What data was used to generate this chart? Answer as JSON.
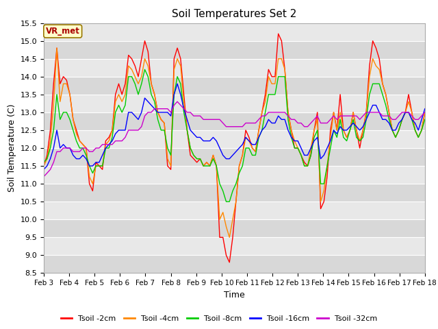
{
  "title": "Soil Temperatures Set 2",
  "xlabel": "Time",
  "ylabel": "Soil Temperature (C)",
  "ylim": [
    8.5,
    15.5
  ],
  "xtick_labels": [
    "Feb 3",
    "Feb 4",
    "Feb 5",
    "Feb 6",
    "Feb 7",
    "Feb 8",
    "Feb 9",
    "Feb 10",
    "Feb 11",
    "Feb 12",
    "Feb 13",
    "Feb 14",
    "Feb 15",
    "Feb 16",
    "Feb 17",
    "Feb 18"
  ],
  "ytick_values": [
    8.5,
    9.0,
    9.5,
    10.0,
    10.5,
    11.0,
    11.5,
    12.0,
    12.5,
    13.0,
    13.5,
    14.0,
    14.5,
    15.0,
    15.5
  ],
  "legend_label": "VR_met",
  "series_colors": [
    "#ff0000",
    "#ff8800",
    "#00cc00",
    "#0000ff",
    "#cc00cc"
  ],
  "series_labels": [
    "Tsoil -2cm",
    "Tsoil -4cm",
    "Tsoil -8cm",
    "Tsoil -16cm",
    "Tsoil -32cm"
  ],
  "fig_background": "#ffffff",
  "plot_background_light": "#e8e8e8",
  "plot_background_dark": "#d8d8d8",
  "grid_color": "#ffffff",
  "annotation_box_color": "#ffffcc",
  "annotation_text_color": "#aa0000",
  "Tsoil_2cm": [
    11.5,
    11.8,
    12.5,
    13.8,
    14.8,
    13.8,
    14.0,
    13.9,
    13.5,
    12.8,
    12.5,
    12.2,
    12.1,
    12.0,
    11.0,
    10.8,
    11.6,
    11.5,
    11.4,
    12.2,
    12.3,
    12.5,
    13.5,
    13.8,
    13.5,
    13.8,
    14.6,
    14.5,
    14.3,
    14.0,
    14.5,
    15.0,
    14.7,
    13.8,
    13.5,
    13.0,
    12.8,
    12.7,
    11.5,
    11.4,
    14.5,
    14.8,
    14.5,
    13.5,
    12.5,
    11.8,
    11.7,
    11.6,
    11.7,
    11.5,
    11.6,
    11.5,
    11.8,
    11.5,
    9.5,
    9.5,
    9.0,
    8.8,
    9.5,
    10.5,
    11.5,
    11.8,
    12.5,
    12.3,
    12.0,
    11.9,
    12.5,
    13.0,
    13.5,
    14.2,
    14.0,
    14.0,
    15.2,
    15.0,
    14.2,
    13.0,
    12.5,
    12.0,
    12.0,
    11.8,
    11.6,
    11.5,
    11.8,
    12.5,
    13.0,
    10.3,
    10.5,
    11.2,
    12.5,
    13.0,
    12.5,
    13.5,
    12.5,
    12.3,
    12.5,
    13.0,
    12.5,
    12.0,
    12.5,
    13.0,
    14.3,
    15.0,
    14.8,
    14.5,
    13.8,
    13.5,
    13.0,
    12.5,
    12.3,
    12.5,
    12.8,
    13.0,
    13.5,
    13.0,
    12.5,
    12.3,
    12.5,
    13.0
  ],
  "Tsoil_4cm": [
    11.5,
    11.7,
    12.2,
    13.2,
    14.8,
    13.3,
    13.8,
    13.8,
    13.5,
    12.8,
    12.4,
    12.2,
    12.1,
    12.0,
    11.2,
    11.0,
    11.5,
    11.5,
    11.5,
    12.1,
    12.2,
    12.5,
    13.3,
    13.5,
    13.3,
    13.5,
    14.3,
    14.2,
    14.0,
    13.8,
    14.0,
    14.5,
    14.3,
    13.8,
    13.5,
    13.0,
    12.8,
    12.7,
    11.7,
    11.5,
    14.2,
    14.5,
    14.3,
    13.3,
    12.5,
    12.0,
    11.8,
    11.7,
    11.7,
    11.5,
    11.6,
    11.5,
    11.8,
    11.5,
    10.0,
    10.2,
    9.8,
    9.5,
    10.0,
    10.5,
    11.5,
    11.8,
    12.3,
    12.2,
    12.0,
    11.9,
    12.5,
    13.0,
    13.3,
    14.0,
    13.8,
    13.8,
    14.5,
    14.5,
    14.2,
    13.0,
    12.5,
    12.2,
    12.0,
    11.8,
    11.5,
    11.5,
    12.0,
    12.5,
    12.8,
    10.5,
    10.8,
    11.5,
    12.3,
    13.0,
    12.5,
    13.0,
    12.5,
    12.3,
    12.5,
    13.0,
    12.5,
    12.2,
    12.5,
    13.0,
    14.0,
    14.5,
    14.3,
    14.2,
    13.8,
    13.5,
    13.0,
    12.5,
    12.3,
    12.5,
    12.8,
    13.0,
    13.3,
    13.0,
    12.5,
    12.3,
    12.5,
    13.0
  ],
  "Tsoil_8cm": [
    11.6,
    11.7,
    12.0,
    12.5,
    13.5,
    12.8,
    13.0,
    13.0,
    12.8,
    12.5,
    12.2,
    12.0,
    12.0,
    11.8,
    11.5,
    11.3,
    11.5,
    11.5,
    11.5,
    12.0,
    12.0,
    12.3,
    13.0,
    13.2,
    13.0,
    13.2,
    14.0,
    14.0,
    13.8,
    13.5,
    13.8,
    14.2,
    14.0,
    13.5,
    13.3,
    12.8,
    12.5,
    12.5,
    12.0,
    11.8,
    13.5,
    14.0,
    13.8,
    13.0,
    12.5,
    12.0,
    11.8,
    11.7,
    11.7,
    11.5,
    11.5,
    11.5,
    11.7,
    11.5,
    11.0,
    10.8,
    10.5,
    10.5,
    10.8,
    11.0,
    11.3,
    11.5,
    12.0,
    12.0,
    11.8,
    11.8,
    12.3,
    12.5,
    13.0,
    13.5,
    13.5,
    13.5,
    14.0,
    14.0,
    14.0,
    12.8,
    12.3,
    12.0,
    12.0,
    11.8,
    11.5,
    11.5,
    11.8,
    12.3,
    12.5,
    11.0,
    11.0,
    11.5,
    12.0,
    12.5,
    12.3,
    12.8,
    12.3,
    12.2,
    12.5,
    12.8,
    12.3,
    12.2,
    12.3,
    12.8,
    13.5,
    13.8,
    13.8,
    13.8,
    13.5,
    13.2,
    12.8,
    12.5,
    12.3,
    12.5,
    12.8,
    13.0,
    13.0,
    12.8,
    12.5,
    12.3,
    12.5,
    12.8
  ],
  "Tsoil_16cm": [
    11.4,
    11.5,
    11.7,
    12.0,
    12.5,
    12.0,
    12.1,
    12.0,
    12.0,
    11.8,
    11.7,
    11.7,
    11.8,
    11.7,
    11.5,
    11.5,
    11.6,
    11.6,
    11.8,
    12.0,
    12.1,
    12.2,
    12.4,
    12.5,
    12.5,
    12.5,
    13.0,
    13.0,
    12.9,
    12.8,
    13.0,
    13.4,
    13.3,
    13.2,
    13.1,
    13.0,
    13.0,
    13.0,
    13.0,
    12.9,
    13.5,
    13.8,
    13.5,
    13.1,
    12.8,
    12.5,
    12.4,
    12.3,
    12.3,
    12.2,
    12.2,
    12.2,
    12.3,
    12.2,
    12.0,
    11.8,
    11.7,
    11.7,
    11.8,
    11.9,
    12.0,
    12.1,
    12.3,
    12.2,
    12.1,
    12.1,
    12.3,
    12.5,
    12.6,
    12.8,
    12.7,
    12.7,
    12.9,
    12.8,
    12.8,
    12.5,
    12.3,
    12.2,
    12.2,
    12.0,
    11.8,
    11.8,
    12.0,
    12.2,
    12.3,
    11.7,
    11.8,
    12.0,
    12.2,
    12.5,
    12.4,
    12.6,
    12.5,
    12.5,
    12.6,
    12.7,
    12.6,
    12.5,
    12.6,
    12.8,
    13.0,
    13.2,
    13.2,
    13.0,
    12.8,
    12.8,
    12.7,
    12.5,
    12.5,
    12.7,
    12.8,
    13.0,
    13.0,
    12.8,
    12.7,
    12.5,
    12.8,
    13.1
  ],
  "Tsoil_32cm": [
    11.2,
    11.3,
    11.4,
    11.6,
    11.9,
    11.9,
    12.0,
    12.0,
    12.0,
    11.9,
    11.9,
    11.9,
    12.0,
    12.0,
    11.9,
    11.9,
    12.0,
    12.0,
    12.1,
    12.1,
    12.1,
    12.1,
    12.2,
    12.2,
    12.2,
    12.3,
    12.5,
    12.5,
    12.5,
    12.5,
    12.6,
    12.9,
    13.0,
    13.0,
    13.1,
    13.1,
    13.1,
    13.1,
    13.1,
    13.0,
    13.2,
    13.3,
    13.2,
    13.1,
    13.0,
    13.0,
    12.9,
    12.9,
    12.9,
    12.8,
    12.8,
    12.8,
    12.8,
    12.8,
    12.8,
    12.7,
    12.6,
    12.6,
    12.6,
    12.6,
    12.6,
    12.6,
    12.7,
    12.7,
    12.7,
    12.7,
    12.8,
    12.9,
    12.9,
    13.0,
    13.0,
    13.0,
    13.0,
    13.0,
    13.0,
    12.9,
    12.8,
    12.8,
    12.7,
    12.7,
    12.6,
    12.6,
    12.7,
    12.8,
    12.9,
    12.7,
    12.7,
    12.7,
    12.8,
    12.9,
    12.8,
    12.9,
    12.9,
    12.9,
    12.9,
    12.9,
    12.9,
    12.8,
    12.9,
    13.0,
    13.0,
    13.0,
    13.0,
    13.0,
    12.9,
    12.9,
    12.9,
    12.8,
    12.8,
    12.9,
    13.0,
    13.0,
    13.0,
    12.9,
    12.8,
    12.8,
    12.9,
    13.0
  ]
}
